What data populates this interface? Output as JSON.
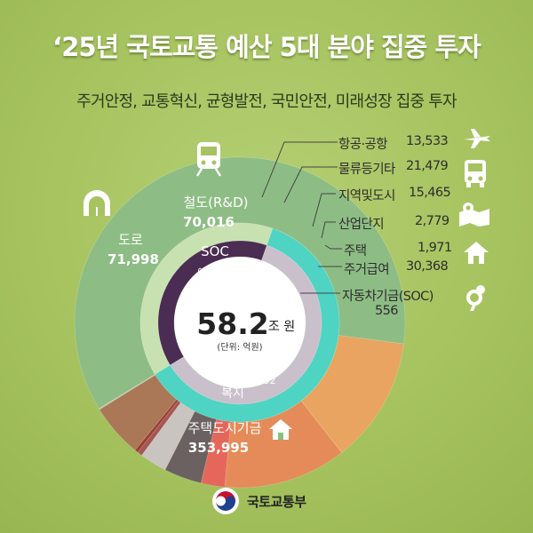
{
  "header": {
    "title": "‘25년 국토교통 예산 5대 분야 집중 투자",
    "subtitle": "주거안정, 교통혁신, 균형발전, 국민안전, 미래성장 집중 투자"
  },
  "center": {
    "total": "58.2",
    "unit": "조 원",
    "note": "(단위: 억원)"
  },
  "inner_ring": {
    "soc_label": "SOC",
    "budget_label": "예산 227,610",
    "budget_welfare_label": "복지",
    "fund_label": "기금 354,552",
    "fund_welfare_label": "복지"
  },
  "colors": {
    "housing_fund": "#8dbd84",
    "road": "#e8a460",
    "rail": "#e58b59",
    "aviation": "#e5675b",
    "logistics": "#6a6160",
    "regional": "#c9c4c0",
    "industrial": "#a55552",
    "housing": "#9b3e33",
    "housing_benefit": "#aa7757",
    "auto_soc": "#c5c1ba",
    "soc_ring": "#c8e1b1",
    "budget_ring": "#4b2c52",
    "fund_ring": "#c9c0cc",
    "welfare_ring": "#4fd3c2"
  },
  "chart_data": {
    "type": "pie",
    "title": "‘25년 국토교통 예산 5대 분야 집중 투자",
    "unit": "억원",
    "total": 582162,
    "groups": [
      {
        "name": "SOC",
        "value": 227610
      },
      {
        "name": "복지",
        "value": 354552
      }
    ],
    "slices": [
      {
        "key": "housing_fund",
        "name": "주택도시기금",
        "value": 353995
      },
      {
        "key": "road",
        "name": "도로",
        "value": 71998
      },
      {
        "key": "rail",
        "name": "철도(R&D)",
        "value": 70016
      },
      {
        "key": "aviation",
        "name": "항공·공항",
        "value": 13533
      },
      {
        "key": "logistics",
        "name": "물류등기타",
        "value": 21479
      },
      {
        "key": "regional",
        "name": "지역및도시",
        "value": 15465
      },
      {
        "key": "industrial",
        "name": "산업단지",
        "value": 2779
      },
      {
        "key": "housing",
        "name": "주택",
        "value": 1971
      },
      {
        "key": "housing_benefit",
        "name": "주거급여",
        "value": 30368
      },
      {
        "key": "auto_soc",
        "name": "자동차기금(SOC)",
        "value": 556
      }
    ]
  },
  "labels": {
    "housing_fund": {
      "name": "주택도시기금",
      "value": "353,995"
    },
    "road": {
      "name": "도로",
      "value": "71,998"
    },
    "rail": {
      "name": "철도(R&D)",
      "value": "70,016"
    },
    "aviation": {
      "name": "항공·공항",
      "value": "13,533"
    },
    "logistics": {
      "name": "물류등기타",
      "value": "21,479"
    },
    "regional": {
      "name": "지역및도시",
      "value": "15,465"
    },
    "industrial": {
      "name": "산업단지",
      "value": "2,779"
    },
    "housing": {
      "name": "주택",
      "value": "1,971"
    },
    "housing_benefit": {
      "name": "주거급여",
      "value": "30,368"
    },
    "auto_soc": {
      "name": "자동차기금(SOC)",
      "value": "556"
    }
  },
  "footer": {
    "org": "국토교통부"
  }
}
